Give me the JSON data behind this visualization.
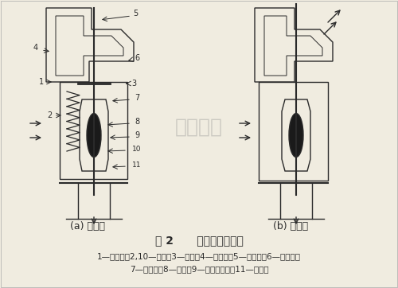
{
  "title": "图 2      蜡式双阀节温器",
  "caption_line1": "1—下支架；2,10—弹簧；3—阀座；4—上支架；5—反推杆；6—主阀门；",
  "caption_line2": "7—橡胶套；8—石蜡；9—感温器外壳；11—副阀门",
  "label_a": "(a) 小循环",
  "label_b": "(b) 大循环",
  "bg_color": "#f0ece0",
  "line_color": "#2a2a2a",
  "watermark": "顶匮电气",
  "fig_width": 5.0,
  "fig_height": 3.62
}
